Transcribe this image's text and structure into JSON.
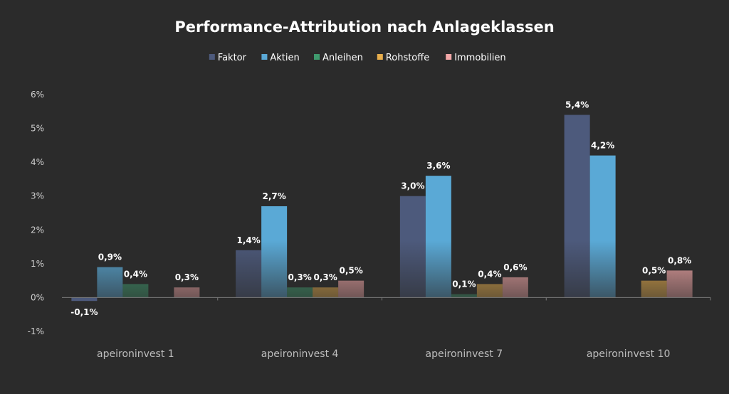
{
  "chart_data": {
    "type": "bar",
    "title": "Performance-Attribution nach Anlageklassen",
    "xlabel": "",
    "ylabel": "",
    "categories": [
      "apeironinvest 1",
      "apeironinvest 4",
      "apeironinvest 7",
      "apeironinvest 10"
    ],
    "ylim": [
      -1,
      6
    ],
    "yticks": [
      -1,
      0,
      1,
      2,
      3,
      4,
      5,
      6
    ],
    "ytick_labels": [
      "-1%",
      "0%",
      "1%",
      "2%",
      "3%",
      "4%",
      "5%",
      "6%"
    ],
    "legend_position": "top-center",
    "grid": false,
    "series": [
      {
        "name": "Faktor",
        "color": "#4d5a7c",
        "values": [
          -0.1,
          1.4,
          3.0,
          5.4
        ],
        "labels": [
          "-0,1%",
          "1,4%",
          "3,0%",
          "5,4%"
        ]
      },
      {
        "name": "Aktien",
        "color": "#5aa9d6",
        "values": [
          0.9,
          2.7,
          3.6,
          4.2
        ],
        "labels": [
          "0,9%",
          "2,7%",
          "3,6%",
          "4,2%"
        ]
      },
      {
        "name": "Anleihen",
        "color": "#3f9a6e",
        "values": [
          0.4,
          0.3,
          0.1,
          0.0
        ],
        "labels": [
          "0,4%",
          "0,3%",
          "0,1%",
          ""
        ]
      },
      {
        "name": "Rohstoffe",
        "color": "#e8ae4c",
        "values": [
          0.0,
          0.3,
          0.4,
          0.5
        ],
        "labels": [
          "",
          "0,3%",
          "0,4%",
          "0,5%"
        ]
      },
      {
        "name": "Immobilien",
        "color": "#f2a7a7",
        "values": [
          0.3,
          0.5,
          0.6,
          0.8
        ],
        "labels": [
          "0,3%",
          "0,5%",
          "0,6%",
          "0,8%"
        ]
      }
    ]
  }
}
